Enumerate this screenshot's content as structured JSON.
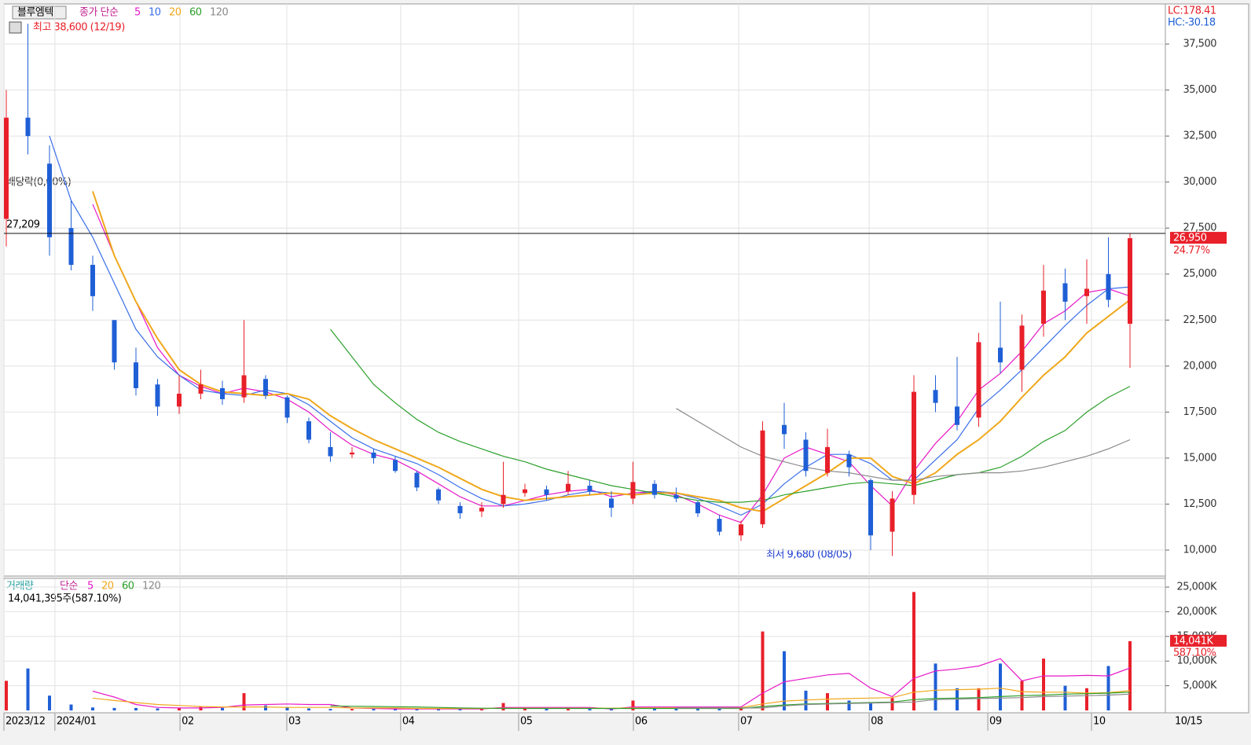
{
  "chart_data": [
    {
      "type": "candlestick",
      "title": "블루엠텍",
      "legend_prefix": "종가 단순",
      "lc_label": "LC:178.41",
      "hc_label": "HC:-30.18",
      "high_label": "최고 38,600 (12/19)",
      "low_label": "최저 9,680 (08/05)",
      "dividend_label": "배당락(0,00%)",
      "ref_line": {
        "value": 27209,
        "label": "27,209"
      },
      "last_price": {
        "value": 26950,
        "label": "26,950"
      },
      "change_label": "24.77%",
      "up_color": "#e8202a",
      "down_color": "#1f5fd6",
      "ylim": [
        8590,
        39680
      ],
      "yticks": [
        {
          "value": 10000,
          "label": "10,000"
        },
        {
          "value": 12500,
          "label": "12,500"
        },
        {
          "value": 15000,
          "label": "15,000"
        },
        {
          "value": 17500,
          "label": "17,500"
        },
        {
          "value": 20000,
          "label": "20,000"
        },
        {
          "value": 22500,
          "label": "22,500"
        },
        {
          "value": 25000,
          "label": "25,000"
        },
        {
          "value": 27500,
          "label": "27,500"
        },
        {
          "value": 30000,
          "label": "30,000"
        },
        {
          "value": 32500,
          "label": "32,500"
        },
        {
          "value": 35000,
          "label": "35,000"
        },
        {
          "value": 37500,
          "label": "37,500"
        }
      ],
      "grid": true,
      "ohlc": [
        [
          28000,
          35000,
          26500,
          33500
        ],
        [
          33500,
          38600,
          31500,
          32500
        ],
        [
          31000,
          32000,
          26000,
          27000
        ],
        [
          27500,
          29000,
          25200,
          25500
        ],
        [
          25500,
          26000,
          23000,
          23800
        ],
        [
          22500,
          22500,
          19800,
          20200
        ],
        [
          20200,
          21000,
          18400,
          18800
        ],
        [
          19000,
          19300,
          17300,
          17800
        ],
        [
          17800,
          19500,
          17400,
          18500
        ],
        [
          18500,
          19800,
          18200,
          19000
        ],
        [
          18800,
          19200,
          17900,
          18200
        ],
        [
          18300,
          22500,
          18000,
          19500
        ],
        [
          19300,
          19500,
          18200,
          18400
        ],
        [
          18300,
          18400,
          16900,
          17200
        ],
        [
          17000,
          17200,
          15800,
          16000
        ],
        [
          15600,
          16400,
          14800,
          15100
        ],
        [
          15200,
          15600,
          15000,
          15300
        ],
        [
          15300,
          15500,
          14700,
          15000
        ],
        [
          14900,
          15100,
          14200,
          14300
        ],
        [
          14200,
          14300,
          13200,
          13400
        ],
        [
          13300,
          13400,
          12500,
          12700
        ],
        [
          12400,
          12600,
          11700,
          12000
        ],
        [
          12100,
          12600,
          11800,
          12300
        ],
        [
          12500,
          14800,
          12300,
          13000
        ],
        [
          13100,
          13600,
          12900,
          13300
        ],
        [
          13300,
          13500,
          12700,
          13000
        ],
        [
          13200,
          14300,
          13000,
          13600
        ],
        [
          13500,
          13800,
          13000,
          13200
        ],
        [
          12800,
          13200,
          11800,
          12300
        ],
        [
          12800,
          14800,
          12500,
          13700
        ],
        [
          13600,
          13800,
          12800,
          13000
        ],
        [
          13000,
          13400,
          12600,
          12800
        ],
        [
          12600,
          12700,
          11800,
          12000
        ],
        [
          11700,
          11900,
          10800,
          11000
        ],
        [
          10800,
          11600,
          10500,
          11400
        ],
        [
          11400,
          17000,
          11200,
          16500
        ],
        [
          16800,
          18000,
          15500,
          16300
        ],
        [
          16000,
          16400,
          14000,
          14300
        ],
        [
          14200,
          16600,
          14000,
          15600
        ],
        [
          15200,
          15400,
          14000,
          14500
        ],
        [
          13800,
          13900,
          10000,
          10800
        ],
        [
          11000,
          13200,
          9680,
          12800
        ],
        [
          13000,
          19500,
          12500,
          18600
        ],
        [
          18700,
          19500,
          17500,
          18000
        ],
        [
          17800,
          20500,
          16500,
          16800
        ],
        [
          17200,
          21800,
          16700,
          21300
        ],
        [
          21000,
          23500,
          19600,
          20200
        ],
        [
          19800,
          22800,
          18600,
          22200
        ],
        [
          22300,
          25500,
          21600,
          24100
        ],
        [
          24500,
          25300,
          22500,
          23500
        ],
        [
          23800,
          25800,
          22300,
          24200
        ],
        [
          25000,
          27000,
          23200,
          23600
        ],
        [
          22300,
          27200,
          19900,
          26950
        ]
      ],
      "series": [
        {
          "name": "5",
          "color": "#e619c8",
          "values": [
            null,
            null,
            null,
            null,
            28800,
            26000,
            23500,
            21000,
            19500,
            18900,
            18500,
            18800,
            18600,
            18200,
            17500,
            16500,
            15700,
            15200,
            14900,
            14300,
            13600,
            12900,
            12400,
            12400,
            12700,
            13000,
            13200,
            13300,
            12900,
            13100,
            13200,
            13000,
            12500,
            11900,
            11500,
            13000,
            15000,
            15600,
            15200,
            14800,
            13500,
            12400,
            14300,
            15800,
            17000,
            18700,
            19600,
            20800,
            22300,
            23000,
            24000,
            24200,
            23800
          ]
        },
        {
          "name": "10",
          "color": "#3a6fe8",
          "values": [
            null,
            null,
            32500,
            29000,
            27000,
            24500,
            22000,
            20500,
            19500,
            18700,
            18500,
            18400,
            18700,
            18500,
            17900,
            17000,
            16100,
            15500,
            15100,
            14700,
            14100,
            13400,
            12800,
            12400,
            12500,
            12700,
            13000,
            13200,
            13100,
            13000,
            13200,
            13100,
            12800,
            12400,
            11900,
            12500,
            13600,
            14500,
            15200,
            15200,
            14700,
            13800,
            13800,
            14900,
            16000,
            17700,
            18700,
            19800,
            21000,
            22200,
            23300,
            24200,
            24300
          ]
        },
        {
          "name": "20",
          "color": "#f0a81c",
          "values": [
            null,
            null,
            null,
            null,
            29500,
            26000,
            23500,
            21500,
            19800,
            19000,
            18600,
            18500,
            18400,
            18500,
            18200,
            17300,
            16600,
            16000,
            15500,
            15000,
            14500,
            13900,
            13300,
            12900,
            12700,
            12800,
            12900,
            13000,
            13100,
            13000,
            13100,
            13100,
            12900,
            12700,
            12300,
            12100,
            12800,
            13500,
            14200,
            15000,
            15000,
            14000,
            13600,
            14200,
            15200,
            16000,
            17000,
            18300,
            19500,
            20500,
            21800,
            22700,
            23600
          ]
        },
        {
          "name": "60",
          "color": "#2ca02c",
          "values": [
            null,
            null,
            null,
            null,
            null,
            null,
            null,
            null,
            null,
            null,
            null,
            null,
            null,
            null,
            null,
            22000,
            20500,
            19000,
            18000,
            17100,
            16400,
            15900,
            15500,
            15100,
            14800,
            14400,
            14100,
            13800,
            13500,
            13300,
            13100,
            12900,
            12700,
            12600,
            12600,
            12700,
            13000,
            13200,
            13400,
            13600,
            13700,
            13600,
            13500,
            13800,
            14100,
            14200,
            14500,
            15100,
            15900,
            16500,
            17500,
            18300,
            18900
          ]
        },
        {
          "name": "120",
          "color": "#8a8a8a",
          "values": [
            null,
            null,
            null,
            null,
            null,
            null,
            null,
            null,
            null,
            null,
            null,
            null,
            null,
            null,
            null,
            null,
            null,
            null,
            null,
            null,
            null,
            null,
            null,
            null,
            null,
            null,
            null,
            null,
            null,
            null,
            null,
            17700,
            17000,
            16300,
            15600,
            15100,
            14800,
            14500,
            14300,
            14200,
            14000,
            13800,
            13800,
            14000,
            14100,
            14200,
            14200,
            14300,
            14500,
            14800,
            15100,
            15500,
            16000
          ]
        }
      ]
    },
    {
      "type": "bar",
      "title": "거래량",
      "legend_prefix": "단순",
      "volume_label": "14,041,395주(587.10%)",
      "last_volume": {
        "value": 14041,
        "label": "14,041K"
      },
      "change_label": "587.10%",
      "ylim": [
        0,
        26600
      ],
      "yticks": [
        {
          "value": 5000,
          "label": "5,000K"
        },
        {
          "value": 10000,
          "label": "10,000K"
        },
        {
          "value": 15000,
          "label": "15,000K"
        },
        {
          "value": 20000,
          "label": "20,000K"
        },
        {
          "value": 25000,
          "label": "25,000K"
        }
      ],
      "grid": true,
      "values": [
        6000,
        8500,
        3000,
        1200,
        600,
        500,
        500,
        400,
        400,
        800,
        500,
        3500,
        1000,
        700,
        400,
        300,
        300,
        300,
        300,
        300,
        300,
        300,
        300,
        1500,
        400,
        300,
        300,
        300,
        300,
        2000,
        400,
        300,
        300,
        300,
        500,
        16000,
        12000,
        4000,
        3500,
        2000,
        1500,
        2500,
        24000,
        9500,
        4500,
        4500,
        9500,
        6000,
        10500,
        5000,
        4500,
        9000,
        14041
      ],
      "series": [
        {
          "name": "5",
          "color": "#e619c8",
          "values": [
            null,
            null,
            null,
            null,
            3900,
            2700,
            1200,
            600,
            500,
            500,
            600,
            1100,
            1200,
            1300,
            1200,
            1200,
            500,
            400,
            300,
            300,
            300,
            300,
            300,
            600,
            600,
            600,
            600,
            600,
            300,
            700,
            700,
            700,
            700,
            700,
            700,
            3500,
            5800,
            6500,
            7200,
            7500,
            4500,
            2800,
            6500,
            8000,
            8400,
            9000,
            10500,
            6000,
            7000,
            7000,
            7100,
            7000,
            8600
          ]
        },
        {
          "name": "20",
          "color": "#f0a81c",
          "values": [
            null,
            null,
            null,
            null,
            2500,
            2000,
            1600,
            1200,
            1000,
            800,
            700,
            700,
            700,
            600,
            600,
            600,
            500,
            500,
            500,
            400,
            400,
            400,
            400,
            450,
            450,
            450,
            450,
            450,
            450,
            500,
            500,
            500,
            500,
            500,
            550,
            1300,
            1900,
            2100,
            2300,
            2400,
            2500,
            2600,
            3700,
            4100,
            4200,
            4300,
            4500,
            3800,
            3700,
            3700,
            3500,
            3600,
            4000
          ]
        },
        {
          "name": "60",
          "color": "#2ca02c",
          "values": [
            null,
            null,
            null,
            null,
            null,
            null,
            null,
            null,
            null,
            null,
            null,
            null,
            null,
            null,
            null,
            900,
            850,
            800,
            750,
            700,
            600,
            500,
            450,
            400,
            400,
            400,
            400,
            400,
            400,
            400,
            400,
            400,
            400,
            400,
            400,
            800,
            1100,
            1300,
            1400,
            1500,
            1600,
            1700,
            2200,
            2400,
            2500,
            2600,
            2800,
            3000,
            3100,
            3300,
            3400,
            3500,
            3700
          ]
        },
        {
          "name": "120",
          "color": "#8a8a8a",
          "values": [
            null,
            null,
            null,
            null,
            null,
            null,
            null,
            null,
            null,
            null,
            null,
            null,
            null,
            null,
            null,
            null,
            null,
            null,
            null,
            null,
            null,
            null,
            null,
            null,
            null,
            null,
            null,
            null,
            null,
            null,
            null,
            500,
            500,
            500,
            500,
            500,
            900,
            1200,
            1300,
            1400,
            1500,
            1600,
            1700,
            2200,
            2300,
            2400,
            2500,
            2600,
            2800,
            2900,
            3000,
            3100,
            3300
          ]
        }
      ],
      "xticks": [
        {
          "value": -0.11,
          "label": "2023/12"
        },
        {
          "value": 2.25,
          "label": "2024/01"
        },
        {
          "value": 8.04,
          "label": "02"
        },
        {
          "value": 12.98,
          "label": "03"
        },
        {
          "value": 18.25,
          "label": "04"
        },
        {
          "value": 23.71,
          "label": "05"
        },
        {
          "value": 29.02,
          "label": "06"
        },
        {
          "value": 33.89,
          "label": "07"
        },
        {
          "value": 39.93,
          "label": "08"
        },
        {
          "value": 45.42,
          "label": "09"
        },
        {
          "value": 50.22,
          "label": "10"
        }
      ],
      "x_end_label": "10/15"
    }
  ]
}
